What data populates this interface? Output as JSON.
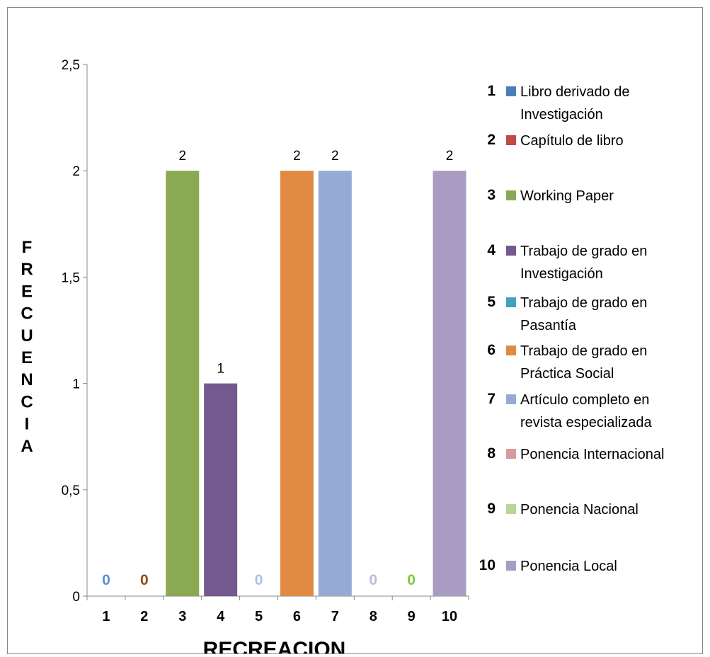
{
  "chart_data": {
    "type": "bar",
    "categories": [
      "1",
      "2",
      "3",
      "4",
      "5",
      "6",
      "7",
      "8",
      "9",
      "10"
    ],
    "values": [
      0,
      0,
      2,
      1,
      0,
      2,
      2,
      0,
      0,
      2
    ],
    "data_labels": [
      "0",
      "0",
      "2",
      "1",
      "0",
      "2",
      "2",
      "0",
      "0",
      "2"
    ],
    "colors": [
      "#4a7ebb",
      "#be4b48",
      "#8ba853",
      "#74598f",
      "#40a2bc",
      "#e08a42",
      "#95abd4",
      "#d89b9b",
      "#b9d59a",
      "#a89cc2"
    ],
    "zero_label_colors": [
      "#5b8fd4",
      "#9a4a0a",
      "#8ba853",
      "#74598f",
      "#a6c4ec",
      "#e08a42",
      "#95abd4",
      "#c5b7d8",
      "#79cc3c",
      "#a89cc2"
    ],
    "title": "",
    "xlabel": "RECREACION",
    "ylabel": "FRECUENCIA",
    "ylim": [
      0,
      2.5
    ],
    "yticks": [
      "0",
      "0,5",
      "1",
      "1,5",
      "2",
      "2,5"
    ],
    "grid": false,
    "legend_position": "right",
    "legend": [
      {
        "number": "1",
        "label": [
          "Libro derivado de",
          "Investigación"
        ]
      },
      {
        "number": "2",
        "label": [
          "Capítulo de libro"
        ]
      },
      {
        "number": "3",
        "label": [
          "Working Paper"
        ]
      },
      {
        "number": "4",
        "label": [
          "Trabajo de grado en",
          "Investigación"
        ]
      },
      {
        "number": "5",
        "label": [
          "Trabajo de grado en",
          "Pasantía"
        ]
      },
      {
        "number": "6",
        "label": [
          "Trabajo de grado en",
          "Práctica Social"
        ]
      },
      {
        "number": "7",
        "label": [
          "Artículo completo en",
          "revista especializada"
        ]
      },
      {
        "number": "8",
        "label": [
          "Ponencia Internacional"
        ]
      },
      {
        "number": "9",
        "label": [
          "Ponencia Nacional"
        ]
      },
      {
        "number": "10",
        "label": [
          "Ponencia Local"
        ]
      }
    ]
  }
}
